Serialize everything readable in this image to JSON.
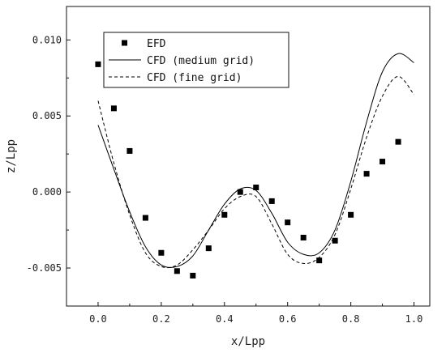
{
  "chart_data": {
    "type": "line",
    "title": "",
    "xlabel": "x/Lpp",
    "ylabel": "z/Lpp",
    "xlim": [
      -0.1,
      1.05
    ],
    "ylim": [
      -0.0075,
      0.0122
    ],
    "xticks": [
      0.0,
      0.2,
      0.4,
      0.6,
      0.8,
      1.0
    ],
    "xtick_labels": [
      "0.0",
      "0.2",
      "0.4",
      "0.6",
      "0.8",
      "1.0"
    ],
    "yticks": [
      -0.005,
      0.0,
      0.005,
      0.01
    ],
    "ytick_labels": [
      "-0.005",
      "0.000",
      "0.005",
      "0.010"
    ],
    "grid": false,
    "legend_position": "top-left",
    "series": [
      {
        "name": "EFD",
        "style": "markers-square",
        "color": "#000000",
        "x": [
          0.0,
          0.05,
          0.1,
          0.15,
          0.2,
          0.25,
          0.3,
          0.35,
          0.4,
          0.45,
          0.5,
          0.55,
          0.6,
          0.65,
          0.7,
          0.75,
          0.8,
          0.85,
          0.9,
          0.95
        ],
        "y": [
          0.0084,
          0.0055,
          0.0027,
          -0.0017,
          -0.004,
          -0.0052,
          -0.0055,
          -0.0037,
          -0.0015,
          0.0,
          0.0003,
          -0.0006,
          -0.002,
          -0.003,
          -0.0045,
          -0.0032,
          -0.0015,
          0.0012,
          0.002,
          0.0033
        ]
      },
      {
        "name": "CFD (medium grid)",
        "style": "solid",
        "color": "#000000",
        "x": [
          0.0,
          0.05,
          0.1,
          0.15,
          0.2,
          0.25,
          0.3,
          0.35,
          0.4,
          0.45,
          0.5,
          0.55,
          0.6,
          0.65,
          0.7,
          0.75,
          0.8,
          0.85,
          0.9,
          0.95,
          1.0
        ],
        "y": [
          0.0044,
          0.0015,
          -0.0013,
          -0.0036,
          -0.0048,
          -0.0049,
          -0.0042,
          -0.0025,
          -0.0008,
          0.0002,
          0.0001,
          -0.0014,
          -0.0033,
          -0.0041,
          -0.004,
          -0.0025,
          0.0007,
          0.0046,
          0.0079,
          0.0091,
          0.0085
        ]
      },
      {
        "name": "CFD (fine grid)",
        "style": "dashed",
        "color": "#000000",
        "x": [
          0.0,
          0.05,
          0.1,
          0.15,
          0.2,
          0.25,
          0.3,
          0.35,
          0.4,
          0.45,
          0.5,
          0.55,
          0.6,
          0.65,
          0.7,
          0.75,
          0.8,
          0.85,
          0.9,
          0.95,
          1.0
        ],
        "y": [
          0.006,
          0.0019,
          -0.0015,
          -0.004,
          -0.0049,
          -0.0048,
          -0.0038,
          -0.0025,
          -0.0011,
          -0.0003,
          -0.0003,
          -0.0021,
          -0.0041,
          -0.0047,
          -0.0043,
          -0.0028,
          0.0002,
          0.0036,
          0.0063,
          0.0076,
          0.0064
        ]
      }
    ]
  }
}
